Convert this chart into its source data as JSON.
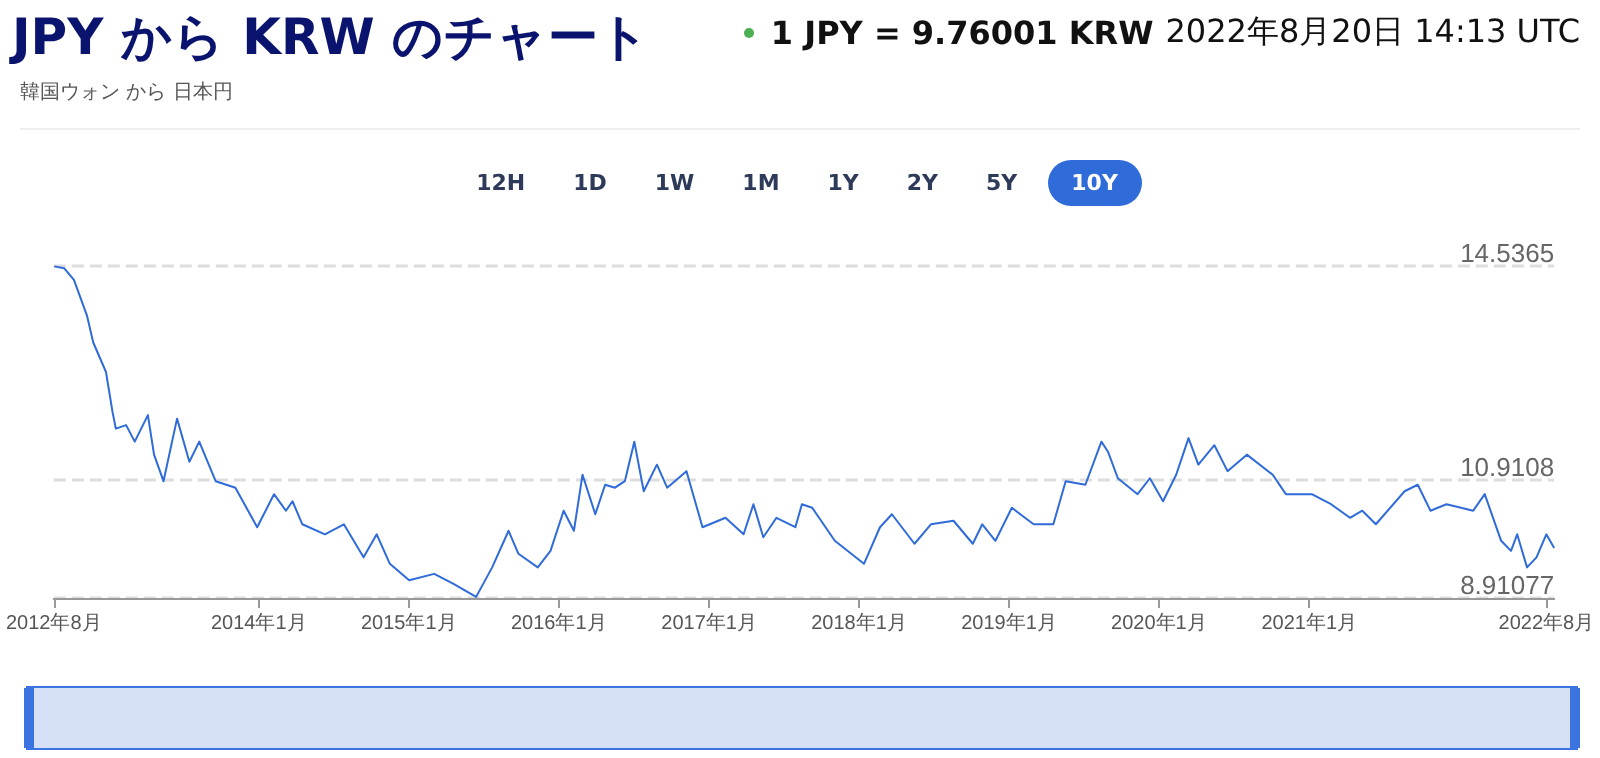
{
  "chart_data": {
    "type": "line",
    "title": "JPY から KRW のチャート",
    "subtitle": "韓国ウォン から 日本円",
    "annotations": [
      "1 JPY = 9.76001 KRW",
      "2022年8月20日 14:13 UTC",
      "12H",
      "1D",
      "1W",
      "1M",
      "1Y",
      "2Y",
      "5Y",
      "10Y"
    ],
    "xlim": [
      "2012-08-20",
      "2022-08-20"
    ],
    "xticks": [
      {
        "value": "2012-08-20",
        "label": "2012年8月"
      },
      {
        "value": "2014-01-01",
        "label": "2014年1月"
      },
      {
        "value": "2015-01-01",
        "label": "2015年1月"
      },
      {
        "value": "2016-01-01",
        "label": "2016年1月"
      },
      {
        "value": "2017-01-01",
        "label": "2017年1月"
      },
      {
        "value": "2018-01-01",
        "label": "2018年1月"
      },
      {
        "value": "2019-01-01",
        "label": "2019年1月"
      },
      {
        "value": "2020-01-01",
        "label": "2020年1月"
      },
      {
        "value": "2021-01-01",
        "label": "2021年1月"
      },
      {
        "value": "2022-08-01",
        "label": "2022年8月"
      }
    ],
    "ylim": [
      8.91077,
      14.5365
    ],
    "yticks": [
      8.91077,
      10.9108,
      14.5365
    ],
    "grid": "y",
    "marker": "none",
    "series": [
      {
        "color": "#2f6bd9",
        "x": [
          "2012-08-21",
          "2012-09-14",
          "2012-10-08",
          "2012-11-09",
          "2012-11-24",
          "2012-12-25",
          "2013-01-10",
          "2013-01-18",
          "2013-02-12",
          "2013-03-05",
          "2013-04-06",
          "2013-04-21",
          "2013-05-14",
          "2013-06-16",
          "2013-07-16",
          "2013-08-09",
          "2013-09-18",
          "2013-11-05",
          "2013-12-28",
          "2014-02-07",
          "2014-03-08",
          "2014-03-24",
          "2014-04-17",
          "2014-06-11",
          "2014-07-27",
          "2014-09-13",
          "2014-10-15",
          "2014-11-16",
          "2015-01-02",
          "2015-03-04",
          "2015-04-20",
          "2015-06-14",
          "2015-07-23",
          "2015-09-01",
          "2015-09-25",
          "2015-11-11",
          "2015-12-12",
          "2016-01-13",
          "2016-02-07",
          "2016-02-28",
          "2016-03-30",
          "2016-04-23",
          "2016-05-17",
          "2016-06-10",
          "2016-07-03",
          "2016-07-26",
          "2016-08-27",
          "2016-09-21",
          "2016-11-07",
          "2016-12-16",
          "2017-02-10",
          "2017-03-26",
          "2017-04-19",
          "2017-05-13",
          "2017-06-14",
          "2017-07-30",
          "2017-08-15",
          "2017-09-09",
          "2017-11-03",
          "2018-01-13",
          "2018-02-21",
          "2018-03-22",
          "2018-05-16",
          "2018-06-25",
          "2018-08-19",
          "2018-10-05",
          "2018-10-28",
          "2018-11-29",
          "2019-01-08",
          "2019-03-02",
          "2019-04-19",
          "2019-05-19",
          "2019-07-06",
          "2019-08-14",
          "2019-08-30",
          "2019-09-23",
          "2019-11-10",
          "2019-12-10",
          "2020-01-11",
          "2020-02-12",
          "2020-03-13",
          "2020-04-06",
          "2020-05-15",
          "2020-06-16",
          "2020-08-02",
          "2020-10-04",
          "2020-11-05",
          "2021-01-07",
          "2021-02-23",
          "2021-04-10",
          "2021-05-10",
          "2021-06-12",
          "2021-08-21",
          "2021-09-22",
          "2021-10-23",
          "2021-12-01",
          "2022-02-04",
          "2022-03-04",
          "2022-04-13",
          "2022-05-07",
          "2022-05-22",
          "2022-06-15",
          "2022-07-08",
          "2022-08-01",
          "2022-08-20"
        ],
        "values": [
          14.53,
          14.5,
          14.3,
          13.69,
          13.24,
          12.74,
          12.06,
          11.78,
          11.84,
          11.56,
          12.01,
          11.34,
          10.89,
          11.95,
          11.22,
          11.56,
          10.89,
          10.78,
          10.11,
          10.67,
          10.39,
          10.55,
          10.16,
          9.99,
          10.16,
          9.6,
          9.99,
          9.49,
          9.21,
          9.32,
          9.15,
          8.93,
          9.43,
          10.05,
          9.66,
          9.43,
          9.71,
          10.39,
          10.05,
          11.0,
          10.33,
          10.83,
          10.78,
          10.89,
          11.56,
          10.72,
          11.17,
          10.78,
          11.06,
          10.11,
          10.27,
          9.99,
          10.5,
          9.94,
          10.27,
          10.11,
          10.5,
          10.44,
          9.88,
          9.49,
          10.11,
          10.33,
          9.83,
          10.16,
          10.22,
          9.83,
          10.16,
          9.88,
          10.44,
          10.16,
          10.16,
          10.89,
          10.83,
          11.56,
          11.39,
          10.94,
          10.67,
          10.94,
          10.55,
          11.0,
          11.62,
          11.17,
          11.5,
          11.06,
          11.34,
          11.0,
          10.67,
          10.67,
          10.5,
          10.27,
          10.39,
          10.16,
          10.72,
          10.83,
          10.39,
          10.5,
          10.39,
          10.67,
          9.88,
          9.71,
          9.99,
          9.43,
          9.6,
          9.99,
          9.76
        ]
      }
    ]
  }
}
